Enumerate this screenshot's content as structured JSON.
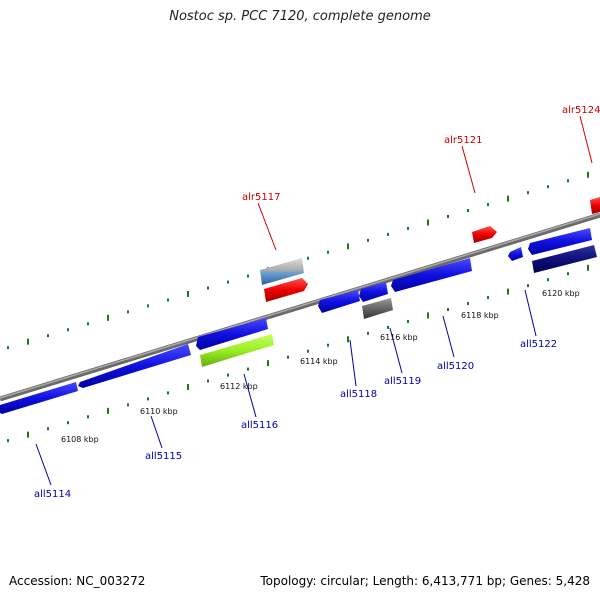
{
  "title": "Nostoc sp. PCC 7120, complete genome",
  "footer": {
    "accession": "Accession: NC_003272",
    "summary": "Topology: circular; Length: 6,413,771 bp; Genes: 5,428"
  },
  "colors": {
    "forward_label": "#cc0000",
    "reverse_label": "#0000aa",
    "backbone": "#8a8a8a",
    "tick": "#1a7a1a"
  },
  "ticks": [
    "6108 kbp",
    "6110 kbp",
    "6112 kbp",
    "6114 kbp",
    "6116 kbp",
    "6118 kbp",
    "6120 kbp"
  ],
  "genes_forward": [
    {
      "name": "alr5117"
    },
    {
      "name": "alr5121"
    },
    {
      "name": "alr5124"
    }
  ],
  "genes_reverse": [
    {
      "name": "all5114"
    },
    {
      "name": "all5115"
    },
    {
      "name": "all5116"
    },
    {
      "name": "all5118"
    },
    {
      "name": "all5119"
    },
    {
      "name": "all5120"
    },
    {
      "name": "all5122"
    }
  ]
}
